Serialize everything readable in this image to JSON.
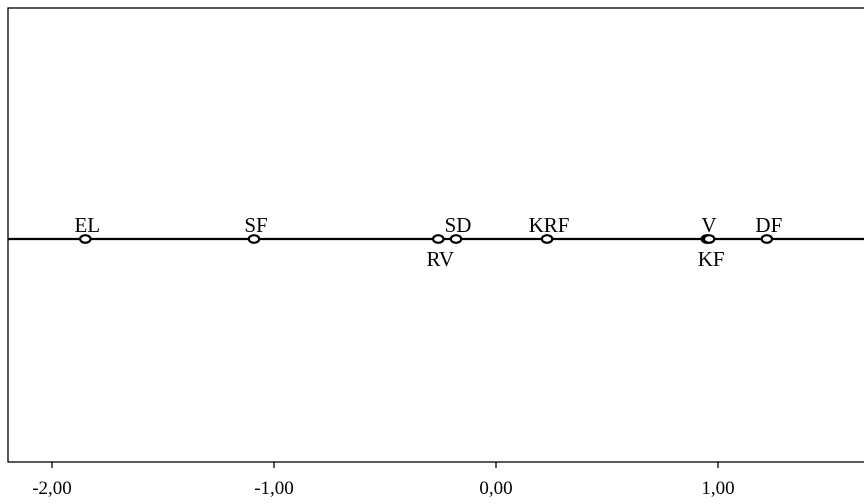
{
  "chart_data": {
    "type": "scatter",
    "title": "",
    "xlabel": "",
    "ylabel": "",
    "xlim": [
      -2.2,
      1.65
    ],
    "grid": false,
    "legend": "none",
    "colors": {
      "axis": "#000000",
      "points": "#000000",
      "background": "#ffffff"
    },
    "x_ticks": [
      {
        "value": -2,
        "label": "-2,00"
      },
      {
        "value": -1,
        "label": "-1,00"
      },
      {
        "value": 0,
        "label": "0,00"
      },
      {
        "value": 1,
        "label": "1,00"
      }
    ],
    "points": [
      {
        "label": "EL",
        "x": -1.85,
        "y": 0,
        "label_position": "above"
      },
      {
        "label": "SF",
        "x": -1.09,
        "y": 0,
        "label_position": "above"
      },
      {
        "label": "RV",
        "x": -0.26,
        "y": 0,
        "label_position": "below"
      },
      {
        "label": "SD",
        "x": -0.18,
        "y": 0,
        "label_position": "above"
      },
      {
        "label": "KRF",
        "x": 0.23,
        "y": 0,
        "label_position": "above"
      },
      {
        "label": "V",
        "x": 0.95,
        "y": 0,
        "label_position": "above"
      },
      {
        "label": "KF",
        "x": 0.96,
        "y": 0,
        "label_position": "below"
      },
      {
        "label": "DF",
        "x": 1.22,
        "y": 0,
        "label_position": "above"
      }
    ]
  }
}
